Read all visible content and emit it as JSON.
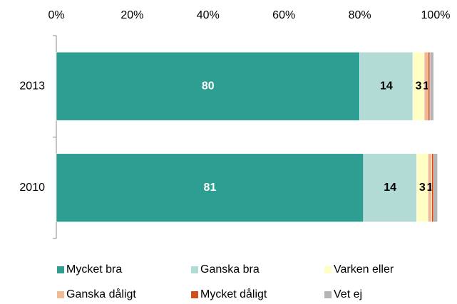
{
  "chart_data": {
    "type": "stacked_barh",
    "categories": [
      "2013",
      "2010"
    ],
    "series": [
      {
        "name": "Mycket bra",
        "color": "#2e9e92",
        "label_color": "#ffffff",
        "values": [
          80,
          81
        ],
        "value_labels": [
          "80",
          "81"
        ]
      },
      {
        "name": "Ganska bra",
        "color": "#b3dbd5",
        "label_color": "#000000",
        "values": [
          14,
          14
        ],
        "value_labels": [
          "14",
          "14"
        ]
      },
      {
        "name": "Varken eller",
        "color": "#ffffc4",
        "label_color": "#000000",
        "values": [
          3,
          3
        ],
        "value_labels": [
          "3",
          "3"
        ]
      },
      {
        "name": "Ganska dåligt",
        "color": "#f2b995",
        "label_color": "#000000",
        "values": [
          1,
          1
        ],
        "value_labels": [
          "1",
          "1"
        ]
      },
      {
        "name": "Mycket dåligt",
        "color": "#d0501c",
        "values": [
          0.5,
          0.5
        ]
      },
      {
        "name": "Vet ej",
        "color": "#b5b5b5",
        "values": [
          1,
          1
        ]
      }
    ],
    "xlim": [
      0,
      100
    ],
    "xticks": [
      {
        "value": 0,
        "label": "0%"
      },
      {
        "value": 20,
        "label": "20%"
      },
      {
        "value": 40,
        "label": "40%"
      },
      {
        "value": 60,
        "label": "60%"
      },
      {
        "value": 80,
        "label": "80%"
      },
      {
        "value": 100,
        "label": "100%"
      }
    ],
    "legend": "bottom"
  }
}
